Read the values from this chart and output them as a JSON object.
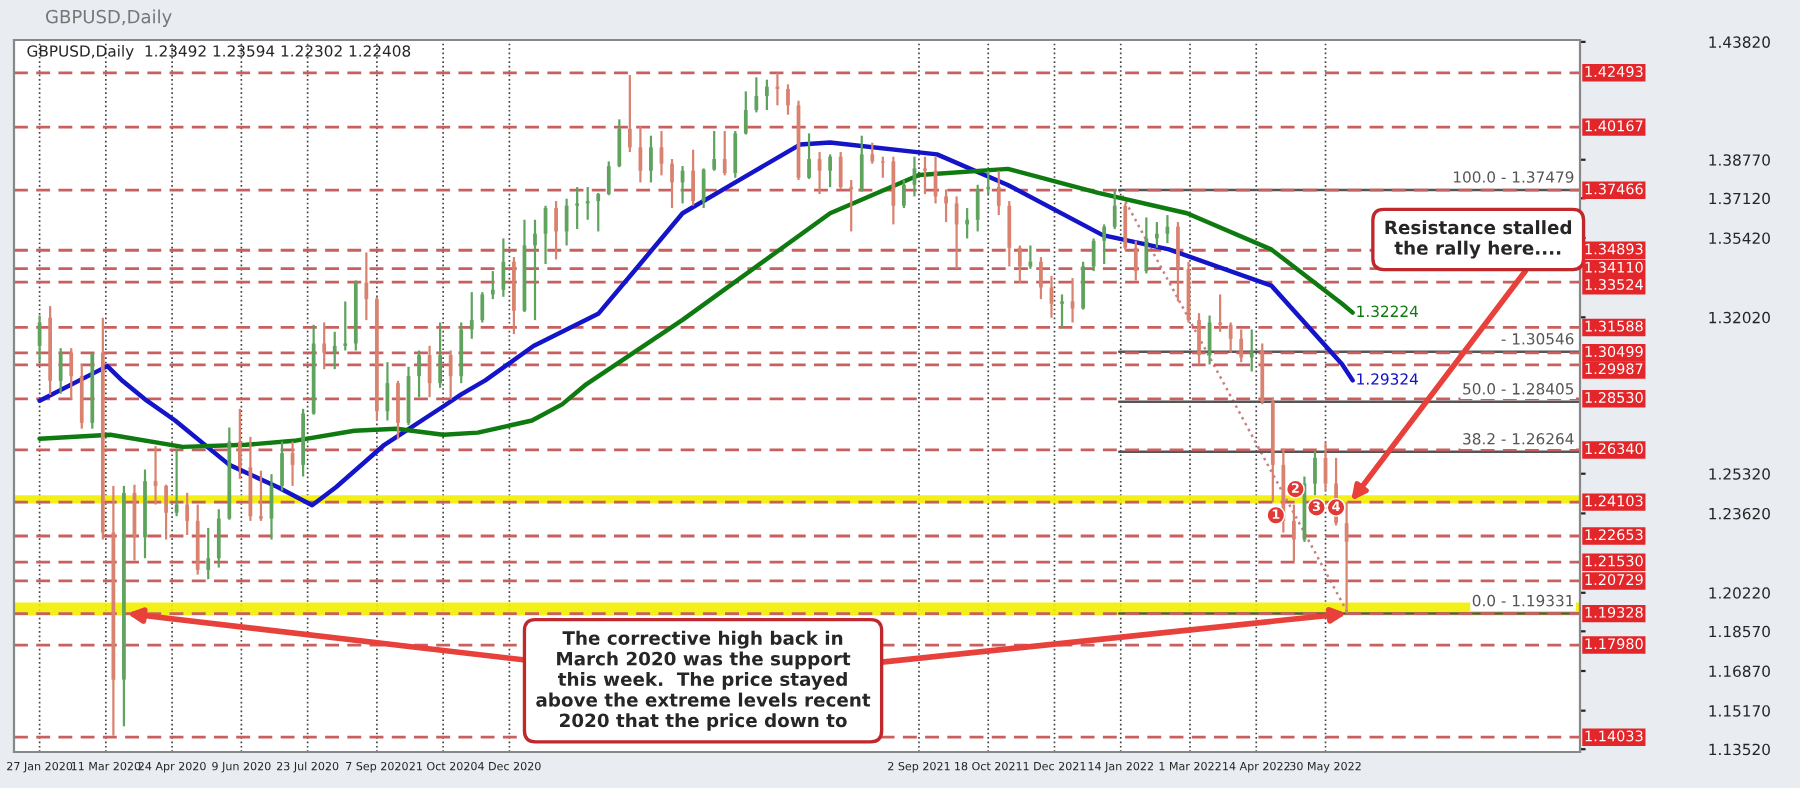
{
  "chart_data": {
    "type": "candlestick",
    "title": "GBPUSD,Daily",
    "subtitle": "GBPUSD,Daily  1.23492 1.23594 1.22302 1.22408",
    "x": [
      "2020-01-27",
      "2020-02-03",
      "2020-02-10",
      "2020-02-17",
      "2020-02-24",
      "2020-03-02",
      "2020-03-09",
      "2020-03-16",
      "2020-03-23",
      "2020-03-30",
      "2020-04-06",
      "2020-04-13",
      "2020-04-20",
      "2020-04-27",
      "2020-05-04",
      "2020-05-11",
      "2020-05-18",
      "2020-05-25",
      "2020-06-01",
      "2020-06-08",
      "2020-06-15",
      "2020-06-22",
      "2020-06-29",
      "2020-07-06",
      "2020-07-13",
      "2020-07-20",
      "2020-07-27",
      "2020-08-03",
      "2020-08-10",
      "2020-08-17",
      "2020-08-24",
      "2020-08-31",
      "2020-09-07",
      "2020-09-14",
      "2020-09-21",
      "2020-09-28",
      "2020-10-05",
      "2020-10-12",
      "2020-10-19",
      "2020-10-26",
      "2020-11-02",
      "2020-11-09",
      "2020-11-16",
      "2020-11-23",
      "2020-11-30",
      "2020-12-07",
      "2020-12-14",
      "2020-12-21",
      "2020-12-28",
      "2021-01-04",
      "2021-01-11",
      "2021-01-18",
      "2021-01-25",
      "2021-02-01",
      "2021-02-08",
      "2021-02-15",
      "2021-02-22",
      "2021-03-01",
      "2021-03-08",
      "2021-03-15",
      "2021-03-22",
      "2021-03-29",
      "2021-04-05",
      "2021-04-12",
      "2021-04-19",
      "2021-04-26",
      "2021-05-03",
      "2021-05-10",
      "2021-05-17",
      "2021-05-24",
      "2021-05-31",
      "2021-06-07",
      "2021-06-14",
      "2021-06-21",
      "2021-06-28",
      "2021-07-05",
      "2021-07-12",
      "2021-07-19",
      "2021-07-26",
      "2021-08-02",
      "2021-08-09",
      "2021-08-16",
      "2021-08-23",
      "2021-08-30",
      "2021-09-06",
      "2021-09-13",
      "2021-09-20",
      "2021-09-27",
      "2021-10-04",
      "2021-10-11",
      "2021-10-18",
      "2021-10-25",
      "2021-11-01",
      "2021-11-08",
      "2021-11-15",
      "2021-11-22",
      "2021-11-29",
      "2021-12-06",
      "2021-12-13",
      "2021-12-20",
      "2021-12-27",
      "2022-01-03",
      "2022-01-10",
      "2022-01-17",
      "2022-01-24",
      "2022-01-31",
      "2022-02-07",
      "2022-02-14",
      "2022-02-21",
      "2022-02-28",
      "2022-03-07",
      "2022-03-14",
      "2022-03-21",
      "2022-03-28",
      "2022-04-04",
      "2022-04-11",
      "2022-04-18",
      "2022-04-25",
      "2022-05-02",
      "2022-05-09",
      "2022-05-16",
      "2022-05-23",
      "2022-05-30",
      "2022-06-06",
      "2022-06-13"
    ],
    "ohlc": [
      [
        1.308,
        1.321,
        1.301,
        1.318
      ],
      [
        1.32,
        1.325,
        1.287,
        1.293
      ],
      [
        1.293,
        1.307,
        1.2875,
        1.305
      ],
      [
        1.305,
        1.307,
        1.285,
        1.295
      ],
      [
        1.295,
        1.3,
        1.2725,
        1.275
      ],
      [
        1.275,
        1.305,
        1.2725,
        1.3045
      ],
      [
        1.305,
        1.32,
        1.225,
        1.228
      ],
      [
        1.228,
        1.248,
        1.141,
        1.165
      ],
      [
        1.165,
        1.248,
        1.145,
        1.245
      ],
      [
        1.245,
        1.2485,
        1.216,
        1.226
      ],
      [
        1.226,
        1.255,
        1.217,
        1.25
      ],
      [
        1.25,
        1.265,
        1.24,
        1.248
      ],
      [
        1.248,
        1.2485,
        1.225,
        1.2365
      ],
      [
        1.2365,
        1.264,
        1.235,
        1.24
      ],
      [
        1.24,
        1.245,
        1.227,
        1.233
      ],
      [
        1.233,
        1.24,
        1.21,
        1.212
      ],
      [
        1.212,
        1.23,
        1.208,
        1.217
      ],
      [
        1.217,
        1.238,
        1.213,
        1.234
      ],
      [
        1.234,
        1.273,
        1.2335,
        1.267
      ],
      [
        1.267,
        1.281,
        1.251,
        1.256
      ],
      [
        1.256,
        1.269,
        1.233,
        1.235
      ],
      [
        1.235,
        1.2545,
        1.233,
        1.234
      ],
      [
        1.234,
        1.253,
        1.225,
        1.248
      ],
      [
        1.248,
        1.267,
        1.246,
        1.262
      ],
      [
        1.262,
        1.267,
        1.248,
        1.257
      ],
      [
        1.257,
        1.281,
        1.252,
        1.279
      ],
      [
        1.279,
        1.317,
        1.2785,
        1.309
      ],
      [
        1.309,
        1.318,
        1.298,
        1.305
      ],
      [
        1.305,
        1.314,
        1.298,
        1.308
      ],
      [
        1.308,
        1.327,
        1.306,
        1.309
      ],
      [
        1.309,
        1.336,
        1.306,
        1.335
      ],
      [
        1.335,
        1.348,
        1.319,
        1.328
      ],
      [
        1.328,
        1.329,
        1.276,
        1.28
      ],
      [
        1.28,
        1.301,
        1.276,
        1.292
      ],
      [
        1.292,
        1.293,
        1.268,
        1.275
      ],
      [
        1.275,
        1.299,
        1.274,
        1.295
      ],
      [
        1.295,
        1.306,
        1.286,
        1.304
      ],
      [
        1.304,
        1.308,
        1.286,
        1.292
      ],
      [
        1.292,
        1.318,
        1.29,
        1.304
      ],
      [
        1.304,
        1.306,
        1.285,
        1.295
      ],
      [
        1.295,
        1.318,
        1.292,
        1.315
      ],
      [
        1.315,
        1.331,
        1.311,
        1.319
      ],
      [
        1.319,
        1.331,
        1.318,
        1.33
      ],
      [
        1.33,
        1.34,
        1.328,
        1.332
      ],
      [
        1.332,
        1.354,
        1.329,
        1.344
      ],
      [
        1.344,
        1.346,
        1.313,
        1.323
      ],
      [
        1.323,
        1.362,
        1.3225,
        1.351
      ],
      [
        1.351,
        1.362,
        1.319,
        1.356
      ],
      [
        1.356,
        1.368,
        1.343,
        1.367
      ],
      [
        1.367,
        1.37,
        1.345,
        1.357
      ],
      [
        1.357,
        1.371,
        1.351,
        1.368
      ],
      [
        1.368,
        1.376,
        1.358,
        1.369
      ],
      [
        1.369,
        1.376,
        1.362,
        1.37
      ],
      [
        1.37,
        1.3735,
        1.357,
        1.373
      ],
      [
        1.373,
        1.387,
        1.3725,
        1.385
      ],
      [
        1.385,
        1.405,
        1.3845,
        1.401
      ],
      [
        1.401,
        1.424,
        1.391,
        1.393
      ],
      [
        1.393,
        1.402,
        1.378,
        1.383
      ],
      [
        1.383,
        1.398,
        1.378,
        1.393
      ],
      [
        1.393,
        1.4,
        1.381,
        1.386
      ],
      [
        1.386,
        1.388,
        1.367,
        1.378
      ],
      [
        1.378,
        1.385,
        1.369,
        1.383
      ],
      [
        1.383,
        1.392,
        1.368,
        1.37
      ],
      [
        1.37,
        1.384,
        1.367,
        1.3835
      ],
      [
        1.3835,
        1.4,
        1.383,
        1.388
      ],
      [
        1.388,
        1.4,
        1.381,
        1.382
      ],
      [
        1.382,
        1.4,
        1.38,
        1.399
      ],
      [
        1.399,
        1.417,
        1.3985,
        1.409
      ],
      [
        1.409,
        1.423,
        1.408,
        1.415
      ],
      [
        1.415,
        1.422,
        1.409,
        1.419
      ],
      [
        1.419,
        1.425,
        1.411,
        1.418
      ],
      [
        1.418,
        1.42,
        1.407,
        1.411
      ],
      [
        1.411,
        1.413,
        1.379,
        1.38
      ],
      [
        1.38,
        1.399,
        1.3795,
        1.388
      ],
      [
        1.388,
        1.391,
        1.373,
        1.383
      ],
      [
        1.383,
        1.39,
        1.376,
        1.389
      ],
      [
        1.389,
        1.391,
        1.375,
        1.376
      ],
      [
        1.376,
        1.379,
        1.357,
        1.375
      ],
      [
        1.375,
        1.398,
        1.374,
        1.39
      ],
      [
        1.39,
        1.395,
        1.386,
        1.387
      ],
      [
        1.387,
        1.389,
        1.38,
        1.3865
      ],
      [
        1.387,
        1.389,
        1.36,
        1.368
      ],
      [
        1.368,
        1.379,
        1.367,
        1.377
      ],
      [
        1.377,
        1.389,
        1.372,
        1.384
      ],
      [
        1.384,
        1.389,
        1.373,
        1.383
      ],
      [
        1.383,
        1.389,
        1.369,
        1.372
      ],
      [
        1.372,
        1.375,
        1.361,
        1.369
      ],
      [
        1.369,
        1.372,
        1.341,
        1.36
      ],
      [
        1.36,
        1.367,
        1.354,
        1.362
      ],
      [
        1.362,
        1.377,
        1.357,
        1.375
      ],
      [
        1.375,
        1.383,
        1.373,
        1.376
      ],
      [
        1.376,
        1.383,
        1.364,
        1.368
      ],
      [
        1.368,
        1.37,
        1.342,
        1.35
      ],
      [
        1.35,
        1.351,
        1.335,
        1.342
      ],
      [
        1.342,
        1.351,
        1.341,
        1.344
      ],
      [
        1.344,
        1.346,
        1.328,
        1.333
      ],
      [
        1.333,
        1.338,
        1.32,
        1.326
      ],
      [
        1.326,
        1.33,
        1.316,
        1.327
      ],
      [
        1.327,
        1.337,
        1.318,
        1.324
      ],
      [
        1.324,
        1.344,
        1.3235,
        1.342
      ],
      [
        1.342,
        1.354,
        1.34,
        1.353
      ],
      [
        1.353,
        1.36,
        1.343,
        1.359
      ],
      [
        1.359,
        1.375,
        1.358,
        1.368
      ],
      [
        1.368,
        1.369,
        1.349,
        1.35
      ],
      [
        1.35,
        1.353,
        1.336,
        1.34
      ],
      [
        1.34,
        1.363,
        1.339,
        1.354
      ],
      [
        1.354,
        1.361,
        1.35,
        1.356
      ],
      [
        1.356,
        1.364,
        1.352,
        1.359
      ],
      [
        1.359,
        1.361,
        1.327,
        1.341
      ],
      [
        1.341,
        1.344,
        1.318,
        1.319
      ],
      [
        1.319,
        1.322,
        1.3,
        1.304
      ],
      [
        1.304,
        1.321,
        1.3,
        1.318
      ],
      [
        1.318,
        1.33,
        1.314,
        1.317
      ],
      [
        1.317,
        1.318,
        1.305,
        1.311
      ],
      [
        1.311,
        1.315,
        1.301,
        1.303
      ],
      [
        1.303,
        1.315,
        1.297,
        1.306
      ],
      [
        1.306,
        1.309,
        1.283,
        1.284
      ],
      [
        1.284,
        1.286,
        1.241,
        1.257
      ],
      [
        1.257,
        1.264,
        1.228,
        1.233
      ],
      [
        1.233,
        1.24,
        1.2155,
        1.225
      ],
      [
        1.225,
        1.252,
        1.224,
        1.249
      ],
      [
        1.249,
        1.263,
        1.244,
        1.26
      ],
      [
        1.26,
        1.2666,
        1.246,
        1.249
      ],
      [
        1.249,
        1.26,
        1.231,
        1.232
      ],
      [
        1.232,
        1.241,
        1.1933,
        1.22408
      ]
    ],
    "colors": [
      "#5fa35f",
      "#d9826f",
      "#5fa35f",
      "#d9826f",
      "#d9826f",
      "#5fa35f",
      "#d9826f",
      "#d9826f",
      "#5fa35f",
      "#d9826f",
      "#5fa35f",
      "#d9826f",
      "#d9826f",
      "#5fa35f",
      "#d9826f",
      "#d9826f",
      "#5fa35f",
      "#5fa35f",
      "#5fa35f",
      "#d9826f",
      "#d9826f",
      "#d9826f",
      "#5fa35f",
      "#5fa35f",
      "#d9826f",
      "#5fa35f",
      "#5fa35f",
      "#d9826f",
      "#5fa35f",
      "#5fa35f",
      "#5fa35f",
      "#d9826f",
      "#d9826f",
      "#5fa35f",
      "#d9826f",
      "#5fa35f",
      "#5fa35f",
      "#d9826f",
      "#5fa35f",
      "#d9826f",
      "#5fa35f",
      "#5fa35f",
      "#5fa35f",
      "#5fa35f",
      "#5fa35f",
      "#d9826f",
      "#5fa35f",
      "#5fa35f",
      "#5fa35f",
      "#d9826f",
      "#5fa35f",
      "#5fa35f",
      "#5fa35f",
      "#5fa35f",
      "#5fa35f",
      "#5fa35f",
      "#d9826f",
      "#d9826f",
      "#5fa35f",
      "#d9826f",
      "#d9826f",
      "#5fa35f",
      "#d9826f",
      "#5fa35f",
      "#5fa35f",
      "#d9826f",
      "#5fa35f",
      "#5fa35f",
      "#5fa35f",
      "#5fa35f",
      "#d9826f",
      "#d9826f",
      "#d9826f",
      "#5fa35f",
      "#d9826f",
      "#5fa35f",
      "#d9826f",
      "#d9826f",
      "#5fa35f",
      "#d9826f",
      "#d9826f",
      "#d9826f",
      "#5fa35f",
      "#5fa35f",
      "#d9826f",
      "#d9826f",
      "#d9826f",
      "#d9826f",
      "#5fa35f",
      "#5fa35f",
      "#5fa35f",
      "#d9826f",
      "#d9826f",
      "#d9826f",
      "#5fa35f",
      "#d9826f",
      "#d9826f",
      "#5fa35f",
      "#d9826f",
      "#5fa35f",
      "#5fa35f",
      "#5fa35f",
      "#5fa35f",
      "#d9826f",
      "#d9826f",
      "#5fa35f",
      "#5fa35f",
      "#5fa35f",
      "#d9826f",
      "#d9826f",
      "#d9826f",
      "#5fa35f",
      "#d9826f",
      "#d9826f",
      "#d9826f",
      "#5fa35f",
      "#d9826f",
      "#d9826f",
      "#d9826f",
      "#d9826f",
      "#5fa35f",
      "#5fa35f",
      "#d9826f",
      "#d9826f",
      "#d9826f"
    ],
    "series": [
      {
        "type": "line",
        "name": "1.29324",
        "color": "#1414c8",
        "x": [
          "2020-01-27",
          "2020-03-12",
          "2020-03-22",
          "2020-04-07",
          "2020-04-26",
          "2020-06-01",
          "2020-07-03",
          "2020-07-26",
          "2020-08-11",
          "2020-09-12",
          "2020-10-21",
          "2020-11-02",
          "2020-11-18",
          "2020-12-20",
          "2021-02-01",
          "2021-02-28",
          "2021-03-29",
          "2021-05-07",
          "2021-06-15",
          "2021-07-05",
          "2021-09-14",
          "2021-10-31",
          "2022-01-02",
          "2022-02-15",
          "2022-04-24",
          "2022-06-10",
          "2022-06-17"
        ],
        "values": [
          1.2845,
          1.2993,
          1.293,
          1.2846,
          1.276,
          1.257,
          1.2475,
          1.2397,
          1.2475,
          1.2656,
          1.282,
          1.2872,
          1.2932,
          1.3079,
          1.3217,
          1.3424,
          1.3648,
          1.3795,
          1.3942,
          1.3951,
          1.39,
          1.3769,
          1.3554,
          1.3493,
          1.3338,
          1.3001,
          1.2932
        ]
      },
      {
        "type": "line",
        "name": "1.32224",
        "color": "#0f7a0f",
        "x": [
          "2020-01-27",
          "2020-03-14",
          "2020-05-01",
          "2020-06-12",
          "2020-07-14",
          "2020-08-23",
          "2020-09-20",
          "2020-10-21",
          "2020-11-13",
          "2020-12-19",
          "2021-01-08",
          "2021-01-24",
          "2021-03-29",
          "2021-07-05",
          "2021-09-02",
          "2021-10-31",
          "2021-12-30",
          "2022-02-27",
          "2022-04-24",
          "2022-06-10",
          "2022-06-17"
        ],
        "values": [
          1.2682,
          1.2699,
          1.2647,
          1.2656,
          1.2673,
          1.2716,
          1.2725,
          1.2699,
          1.2708,
          1.276,
          1.2829,
          1.2915,
          1.3191,
          1.3648,
          1.3812,
          1.3838,
          1.3735,
          1.3648,
          1.3493,
          1.326,
          1.3222
        ]
      },
      {
        "type": "line",
        "color": "#c88080",
        "line_style": "dotted",
        "x": [
          "2022-01-13",
          "2022-06-14"
        ],
        "values": [
          1.3748,
          1.1933
        ]
      },
      {
        "type": "line",
        "name": "100.0 - 1.37479",
        "color": "#555555",
        "x": [
          "2022-01-13",
          "2022-11-15"
        ],
        "values": [
          1.37479,
          1.37479
        ]
      },
      {
        "type": "line",
        "name": "- 1.30546",
        "color": "#555555",
        "x": [
          "2022-01-13",
          "2022-11-15"
        ],
        "values": [
          1.30546,
          1.30546
        ]
      },
      {
        "type": "line",
        "name": "50.0 - 1.28405",
        "color": "#555555",
        "x": [
          "2022-01-13",
          "2022-11-15"
        ],
        "values": [
          1.28405,
          1.28405
        ]
      },
      {
        "type": "line",
        "name": "38.2 - 1.26264",
        "color": "#555555",
        "x": [
          "2022-01-13",
          "2022-11-15"
        ],
        "values": [
          1.26264,
          1.26264
        ]
      },
      {
        "type": "line",
        "name": "0.0 - 1.19331",
        "color": "#555555",
        "x": [
          "2022-01-13",
          "2022-11-15"
        ],
        "values": [
          1.19331,
          1.19331
        ]
      }
    ],
    "ref_lines": [
      {
        "axis": "y",
        "value": 1.42493,
        "label": "1.42493",
        "color": "#c86060",
        "line_style": "dashed"
      },
      {
        "axis": "y",
        "value": 1.40167,
        "label": "1.40167",
        "color": "#c86060",
        "line_style": "dashed"
      },
      {
        "axis": "y",
        "value": 1.37466,
        "label": "1.37466",
        "color": "#c86060",
        "line_style": "dashed"
      },
      {
        "axis": "y",
        "value": 1.34893,
        "label": "1.34893",
        "color": "#c86060",
        "line_style": "dashed"
      },
      {
        "axis": "y",
        "value": 1.3411,
        "label": "1.34110",
        "color": "#c86060",
        "line_style": "dashed"
      },
      {
        "axis": "y",
        "value": 1.33524,
        "label": "1.33524",
        "color": "#c86060",
        "line_style": "dashed"
      },
      {
        "axis": "y",
        "value": 1.31588,
        "label": "1.31588",
        "color": "#c86060",
        "line_style": "dashed"
      },
      {
        "axis": "y",
        "value": 1.30499,
        "label": "1.30499",
        "color": "#c86060",
        "line_style": "dashed"
      },
      {
        "axis": "y",
        "value": 1.29987,
        "label": "1.29987",
        "color": "#c86060",
        "line_style": "dashed"
      },
      {
        "axis": "y",
        "value": 1.2853,
        "label": "1.28530",
        "color": "#c86060",
        "line_style": "dashed"
      },
      {
        "axis": "y",
        "value": 1.2634,
        "label": "1.26340",
        "color": "#c86060",
        "line_style": "dashed"
      },
      {
        "axis": "y",
        "value": 1.24103,
        "label": "1.24103",
        "color": "#c86060",
        "line_style": "dashed"
      },
      {
        "axis": "y",
        "value": 1.22653,
        "label": "1.22653",
        "color": "#c86060",
        "line_style": "dashed"
      },
      {
        "axis": "y",
        "value": 1.2153,
        "label": "1.21530",
        "color": "#c86060",
        "line_style": "dashed"
      },
      {
        "axis": "y",
        "value": 1.20729,
        "label": "1.20729",
        "color": "#c86060",
        "line_style": "dashed"
      },
      {
        "axis": "y",
        "value": 1.19328,
        "label": "1.19328",
        "color": "#c86060",
        "line_style": "dashed"
      },
      {
        "axis": "y",
        "value": 1.1798,
        "label": "1.17980",
        "color": "#c86060",
        "line_style": "dashed"
      },
      {
        "axis": "y",
        "value": 1.14033,
        "label": "1.14033",
        "color": "#c86060",
        "line_style": "dashed"
      }
    ],
    "bands": [
      {
        "axis": "y",
        "from": 1.2405,
        "to": 1.244,
        "color": "#f2ee00"
      },
      {
        "axis": "y",
        "from": 1.1925,
        "to": 1.198,
        "color": "#f2ee00"
      }
    ],
    "annotations": [
      {
        "text": "Resistance stalled\nthe rally here....",
        "x": "2022-06-16",
        "y": 1.2415
      },
      {
        "text": "The corrective high back in\nMarch 2020 was the support\nthis week.  The price stayed\nabove the extreme levels recent\n2020 that the price down to",
        "x": "2020-03-25",
        "y": 1.1933
      },
      {
        "text": "1",
        "x": "2022-04-27",
        "y": 1.2354
      },
      {
        "text": "2",
        "x": "2022-05-10",
        "y": 1.2466
      },
      {
        "text": "3",
        "x": "2022-05-24",
        "y": 1.2388
      },
      {
        "text": "4",
        "x": "2022-06-06",
        "y": 1.2388
      }
    ],
    "xlim": [
      "2020-01-10",
      "2022-11-15"
    ],
    "xticks": [
      {
        "value": "2020-01-27",
        "label": "27 Jan 2020"
      },
      {
        "value": "2020-03-11",
        "label": "11 Mar 2020"
      },
      {
        "value": "2020-04-24",
        "label": "24 Apr 2020"
      },
      {
        "value": "2020-06-09",
        "label": "9 Jun 2020"
      },
      {
        "value": "2020-07-23",
        "label": "23 Jul 2020"
      },
      {
        "value": "2020-09-07",
        "label": "7 Sep 2020"
      },
      {
        "value": "2020-10-21",
        "label": "21 Oct 2020"
      },
      {
        "value": "2020-12-04",
        "label": "4 Dec 2020"
      },
      {
        "value": "2021-09-02",
        "label": "2 Sep 2021"
      },
      {
        "value": "2021-10-18",
        "label": "18 Oct 2021"
      },
      {
        "value": "2021-12-01",
        "label": "1 Dec 2021"
      },
      {
        "value": "2022-01-14",
        "label": "14 Jan 2022"
      },
      {
        "value": "2022-03-01",
        "label": "1 Mar 2022"
      },
      {
        "value": "2022-04-14",
        "label": "14 Apr 2022"
      },
      {
        "value": "2022-05-30",
        "label": "30 May 2022"
      }
    ],
    "ylim": [
      1.134,
      1.439
    ],
    "yticks": [
      {
        "value": 1.4382,
        "label": "1.43820"
      },
      {
        "value": 1.3877,
        "label": "1.38770"
      },
      {
        "value": 1.3712,
        "label": "1.37120"
      },
      {
        "value": 1.3542,
        "label": "1.35420"
      },
      {
        "value": 1.3202,
        "label": "1.32020"
      },
      {
        "value": 1.2532,
        "label": "1.25320"
      },
      {
        "value": 1.2362,
        "label": "1.23620"
      },
      {
        "value": 1.2022,
        "label": "1.20220"
      },
      {
        "value": 1.1857,
        "label": "1.18570"
      },
      {
        "value": 1.1687,
        "label": "1.16870"
      },
      {
        "value": 1.1517,
        "label": "1.15170"
      },
      {
        "value": 1.1352,
        "label": "1.13520"
      }
    ],
    "grid": "x"
  }
}
